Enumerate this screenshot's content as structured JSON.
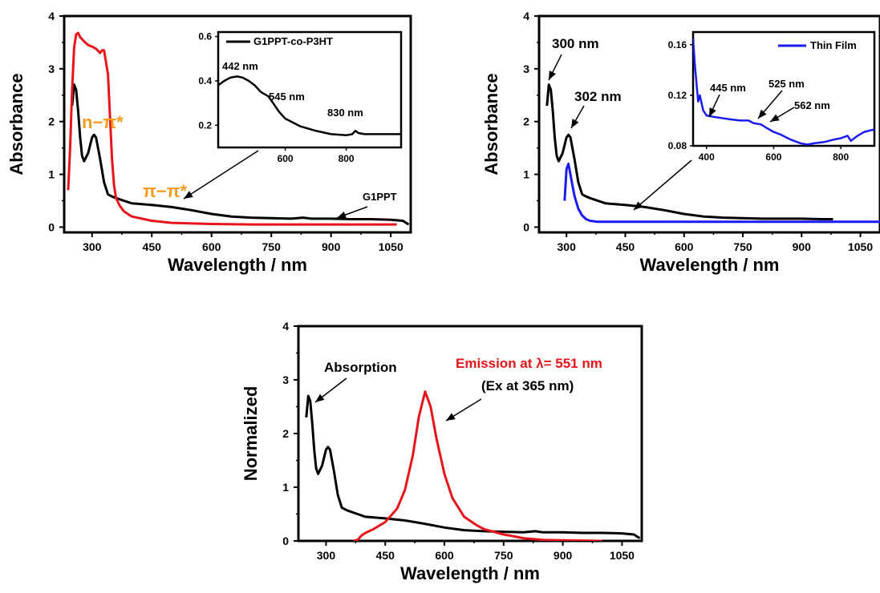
{
  "colors": {
    "black": "#000000",
    "red": "#e8141b",
    "orange": "#f39c1f",
    "blue": "#1b1bf0"
  },
  "chart_data": [
    {
      "type": "line",
      "xlabel": "Wavelength / nm",
      "ylabel": "Absorbance",
      "xlim": [
        230,
        1100
      ],
      "ylim": [
        -0.1,
        4
      ],
      "xticks": [
        300,
        450,
        600,
        750,
        900,
        1050
      ],
      "yticks": [
        0,
        1,
        2,
        3,
        4
      ],
      "series": [
        {
          "color": "#000000",
          "x": [
            250,
            255,
            260,
            265,
            270,
            275,
            280,
            290,
            300,
            305,
            310,
            320,
            330,
            340,
            350,
            360,
            380,
            400,
            450,
            500,
            550,
            600,
            650,
            700,
            750,
            800,
            830,
            850,
            900,
            950,
            1000,
            1050,
            1080,
            1095
          ],
          "y": [
            2.3,
            2.7,
            2.6,
            2.2,
            1.7,
            1.35,
            1.25,
            1.4,
            1.7,
            1.75,
            1.7,
            1.3,
            0.85,
            0.62,
            0.58,
            0.55,
            0.5,
            0.45,
            0.42,
            0.38,
            0.32,
            0.25,
            0.2,
            0.18,
            0.17,
            0.16,
            0.18,
            0.16,
            0.16,
            0.15,
            0.15,
            0.14,
            0.12,
            0.05
          ]
        },
        {
          "color": "#e8141b",
          "x": [
            240,
            245,
            250,
            255,
            260,
            265,
            270,
            280,
            290,
            300,
            310,
            320,
            325,
            330,
            340,
            345,
            350,
            355,
            360,
            370,
            380,
            400,
            450,
            500,
            600,
            700,
            800,
            900,
            1000,
            1050,
            1065
          ],
          "y": [
            0.7,
            1.5,
            2.6,
            3.4,
            3.65,
            3.68,
            3.6,
            3.52,
            3.45,
            3.42,
            3.38,
            3.3,
            3.35,
            3.35,
            2.9,
            2.1,
            1.3,
            0.8,
            0.55,
            0.4,
            0.3,
            0.2,
            0.12,
            0.08,
            0.06,
            0.05,
            0.05,
            0.05,
            0.05,
            0.05,
            0.05
          ]
        }
      ],
      "annotations": {
        "n_pi": "n−π*",
        "pi_pi": "π−π*",
        "g1ppt": "G1PPT"
      },
      "inset": {
        "type": "line",
        "legend": "G1PPT-co-P3HT",
        "xlim": [
          380,
          980
        ],
        "ylim": [
          0.1,
          0.62
        ],
        "xticks": [
          600,
          800
        ],
        "yticks": [
          0.2,
          0.4,
          0.6
        ],
        "series": [
          {
            "color": "#000000",
            "x": [
              380,
              400,
              420,
              442,
              460,
              480,
              500,
              520,
              545,
              560,
              580,
              600,
              650,
              700,
              750,
              800,
              820,
              830,
              840,
              860,
              900,
              950,
              980
            ],
            "y": [
              0.38,
              0.4,
              0.415,
              0.42,
              0.415,
              0.4,
              0.38,
              0.35,
              0.33,
              0.3,
              0.26,
              0.23,
              0.195,
              0.175,
              0.16,
              0.155,
              0.16,
              0.175,
              0.165,
              0.16,
              0.16,
              0.16,
              0.16
            ]
          }
        ],
        "annotations": [
          "442 nm",
          "545 nm",
          "830 nm"
        ]
      }
    },
    {
      "type": "line",
      "xlabel": "Wavelength / nm",
      "ylabel": "Absorbance",
      "xlim": [
        230,
        1100
      ],
      "ylim": [
        -0.1,
        4
      ],
      "xticks": [
        300,
        450,
        600,
        750,
        900,
        1050
      ],
      "yticks": [
        0,
        1,
        2,
        3,
        4
      ],
      "series": [
        {
          "color": "#000000",
          "x": [
            250,
            255,
            260,
            265,
            270,
            275,
            280,
            290,
            300,
            305,
            310,
            320,
            330,
            340,
            350,
            360,
            380,
            400,
            450,
            500,
            550,
            600,
            650,
            700,
            750,
            800,
            850,
            900,
            950,
            980
          ],
          "y": [
            2.3,
            2.7,
            2.6,
            2.2,
            1.7,
            1.35,
            1.25,
            1.4,
            1.7,
            1.75,
            1.7,
            1.3,
            0.85,
            0.62,
            0.58,
            0.55,
            0.5,
            0.45,
            0.42,
            0.38,
            0.32,
            0.25,
            0.2,
            0.18,
            0.17,
            0.16,
            0.16,
            0.16,
            0.15,
            0.15
          ]
        },
        {
          "color": "#1b1bf0",
          "x": [
            295,
            300,
            305,
            310,
            315,
            320,
            330,
            340,
            350,
            360,
            380,
            400,
            500,
            600,
            700,
            800,
            900,
            1000,
            1050,
            1100
          ],
          "y": [
            0.5,
            1.1,
            1.2,
            1.0,
            0.8,
            0.6,
            0.35,
            0.22,
            0.15,
            0.12,
            0.1,
            0.1,
            0.1,
            0.1,
            0.1,
            0.1,
            0.1,
            0.1,
            0.1,
            0.1
          ]
        }
      ],
      "annotations": [
        "300 nm",
        "302 nm"
      ],
      "inset": {
        "type": "line",
        "legend": "Thin Film",
        "xlim": [
          360,
          900
        ],
        "ylim": [
          0.08,
          0.17
        ],
        "xticks": [
          400,
          600,
          800
        ],
        "yticks": [
          0.08,
          0.12,
          0.16
        ],
        "series": [
          {
            "color": "#1b1bf0",
            "x": [
              360,
              365,
              370,
              375,
              380,
              390,
              400,
              420,
              445,
              470,
              500,
              525,
              540,
              562,
              580,
              600,
              620,
              650,
              680,
              700,
              720,
              750,
              780,
              800,
              820,
              830,
              850,
              870,
              900
            ],
            "y": [
              0.165,
              0.145,
              0.13,
              0.115,
              0.12,
              0.108,
              0.104,
              0.103,
              0.102,
              0.101,
              0.1,
              0.1,
              0.098,
              0.097,
              0.094,
              0.091,
              0.089,
              0.085,
              0.082,
              0.081,
              0.082,
              0.083,
              0.085,
              0.086,
              0.088,
              0.084,
              0.088,
              0.091,
              0.093
            ]
          }
        ],
        "annotations": [
          "445 nm",
          "525 nm",
          "562 nm"
        ]
      }
    },
    {
      "type": "line",
      "xlabel": "Wavelength / nm",
      "ylabel": "Normalized",
      "xlim": [
        230,
        1100
      ],
      "ylim": [
        0,
        4
      ],
      "xticks": [
        300,
        450,
        600,
        750,
        900,
        1050
      ],
      "yticks": [
        0,
        1,
        2,
        3,
        4
      ],
      "series": [
        {
          "name": "Absorption",
          "color": "#000000",
          "x": [
            250,
            255,
            260,
            265,
            270,
            275,
            280,
            290,
            300,
            305,
            310,
            320,
            330,
            340,
            350,
            360,
            380,
            400,
            450,
            500,
            550,
            600,
            650,
            700,
            750,
            800,
            830,
            850,
            900,
            950,
            1000,
            1050,
            1080,
            1095
          ],
          "y": [
            2.3,
            2.7,
            2.6,
            2.2,
            1.7,
            1.35,
            1.25,
            1.4,
            1.7,
            1.75,
            1.7,
            1.3,
            0.85,
            0.62,
            0.58,
            0.55,
            0.5,
            0.45,
            0.42,
            0.38,
            0.32,
            0.25,
            0.2,
            0.18,
            0.17,
            0.16,
            0.18,
            0.16,
            0.16,
            0.15,
            0.15,
            0.14,
            0.12,
            0.05
          ]
        },
        {
          "name": "Emission at λ= 551 nm",
          "color": "#e8141b",
          "x": [
            370,
            380,
            390,
            400,
            420,
            450,
            480,
            500,
            520,
            535,
            551,
            565,
            580,
            600,
            620,
            650,
            680,
            700,
            720,
            750,
            780,
            800,
            850,
            900,
            1000
          ],
          "y": [
            0,
            0.02,
            0.1,
            0.15,
            0.22,
            0.35,
            0.6,
            0.95,
            1.6,
            2.3,
            2.78,
            2.5,
            1.9,
            1.25,
            0.8,
            0.45,
            0.3,
            0.22,
            0.18,
            0.12,
            0.08,
            0.05,
            0.02,
            0.01,
            0
          ]
        }
      ],
      "annotations": [
        "Absorption",
        "Emission at λ= 551 nm",
        "(Ex at 365 nm)"
      ]
    }
  ]
}
